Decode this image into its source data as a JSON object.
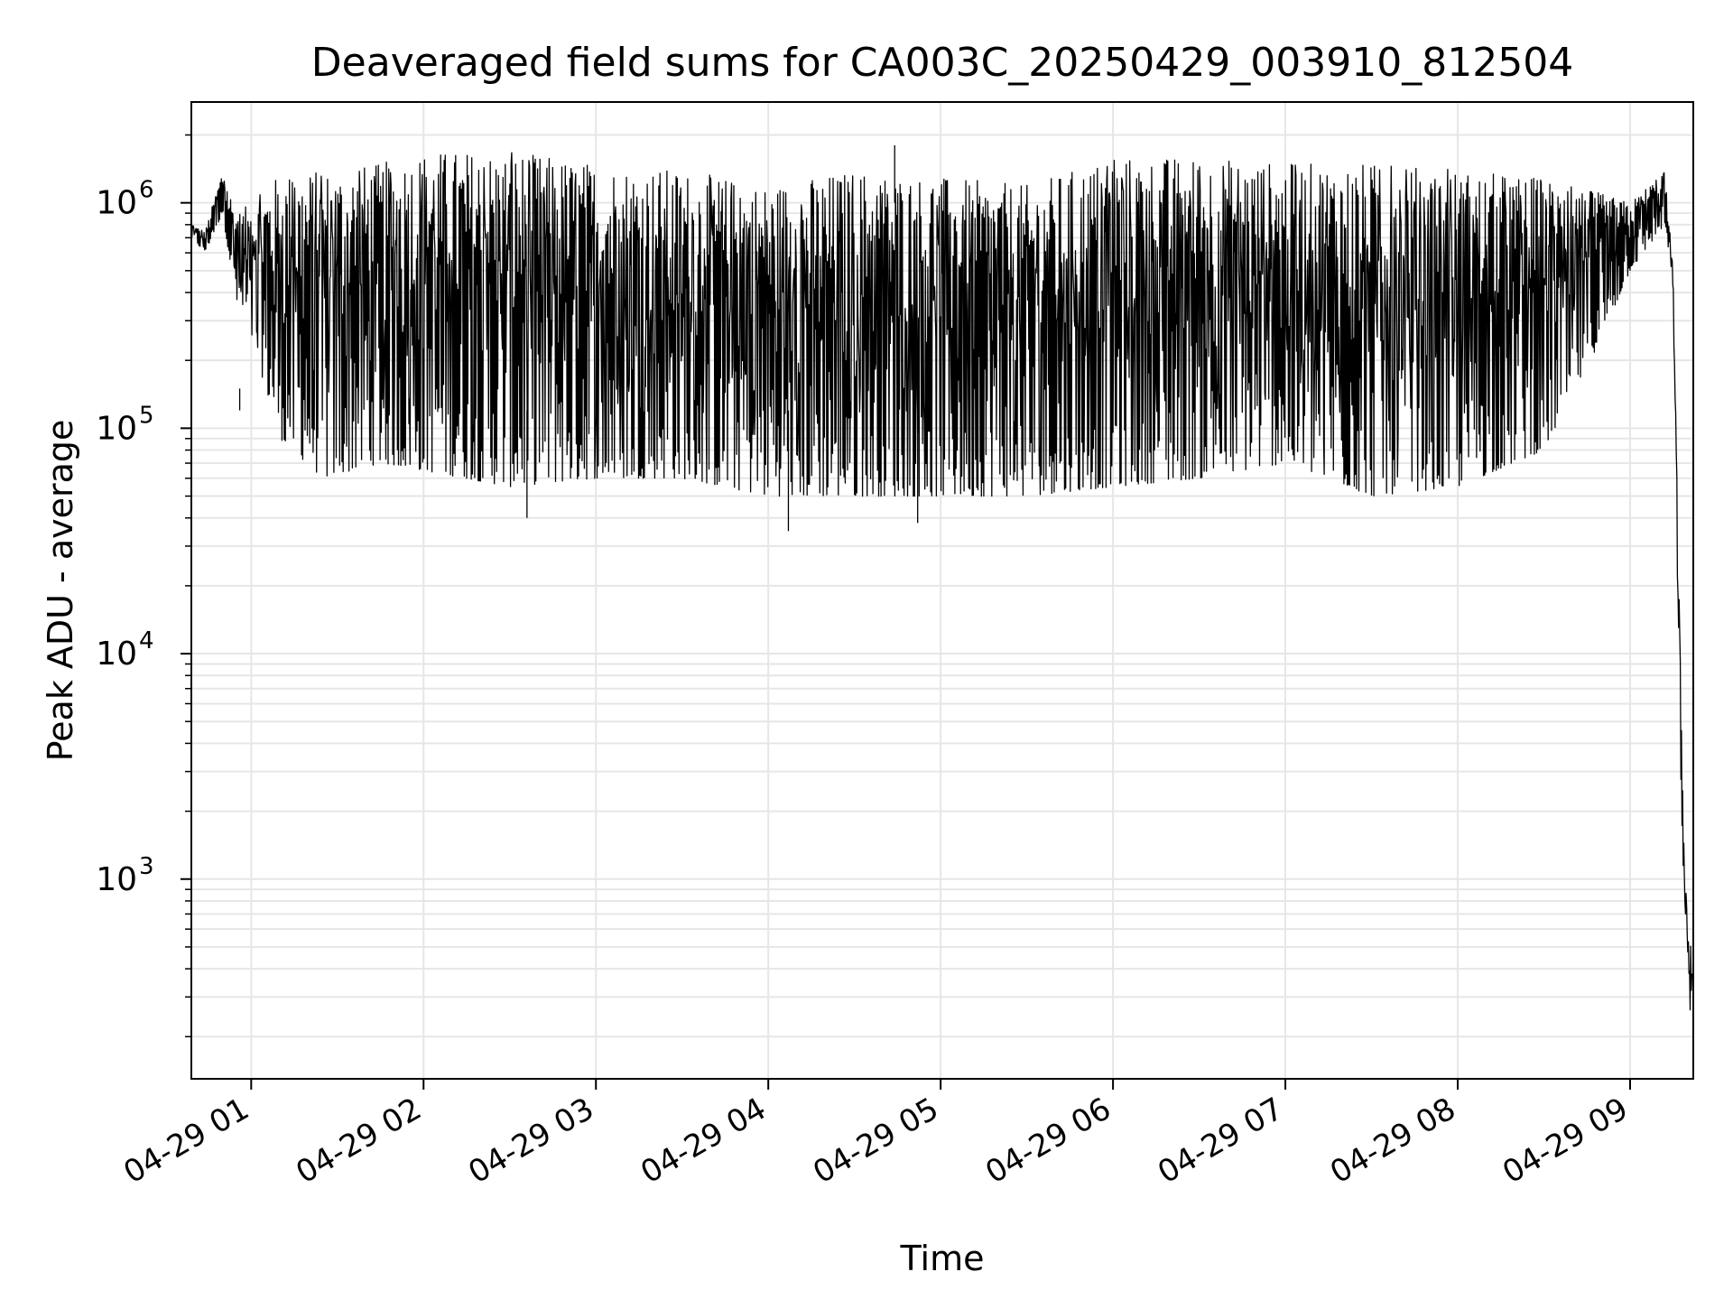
{
  "chart_data": {
    "type": "line",
    "title": "Deaveraged field sums for CA003C_20250429_003910_812504",
    "xlabel": "Time",
    "ylabel": "Peak ADU - average",
    "yscale": "log",
    "grid": true,
    "legend": "none",
    "xlim": [
      "2025-04-29T00:39:10",
      "2025-04-29T09:22:00"
    ],
    "ylim": [
      130,
      2800000
    ],
    "x_ticks": [
      {
        "time": "2025-04-29T01:00:00",
        "label": "04-29 01"
      },
      {
        "time": "2025-04-29T02:00:00",
        "label": "04-29 02"
      },
      {
        "time": "2025-04-29T03:00:00",
        "label": "04-29 03"
      },
      {
        "time": "2025-04-29T04:00:00",
        "label": "04-29 04"
      },
      {
        "time": "2025-04-29T05:00:00",
        "label": "04-29 05"
      },
      {
        "time": "2025-04-29T06:00:00",
        "label": "04-29 06"
      },
      {
        "time": "2025-04-29T07:00:00",
        "label": "04-29 07"
      },
      {
        "time": "2025-04-29T08:00:00",
        "label": "04-29 08"
      },
      {
        "time": "2025-04-29T09:00:00",
        "label": "04-29 09"
      }
    ],
    "y_ticks": [
      {
        "value": 1000,
        "base": "10",
        "exp": "3"
      },
      {
        "value": 10000,
        "base": "10",
        "exp": "4"
      },
      {
        "value": 100000,
        "base": "10",
        "exp": "5"
      },
      {
        "value": 1000000,
        "base": "10",
        "exp": "6"
      }
    ],
    "series": [
      {
        "color": "#000000",
        "envelope": [
          {
            "x": "2025-04-29T00:39:10",
            "max": 800000,
            "min": 700000
          },
          {
            "x": "2025-04-29T00:44:00",
            "max": 750000,
            "min": 600000
          },
          {
            "x": "2025-04-29T00:50:00",
            "max": 1400000,
            "min": 900000
          },
          {
            "x": "2025-04-29T00:55:00",
            "max": 900000,
            "min": 350000
          },
          {
            "x": "2025-04-29T01:00:00",
            "max": 1000000,
            "min": 250000
          },
          {
            "x": "2025-04-29T01:10:00",
            "max": 1350000,
            "min": 90000
          },
          {
            "x": "2025-04-29T01:25:00",
            "max": 1400000,
            "min": 60000
          },
          {
            "x": "2025-04-29T01:45:00",
            "max": 1500000,
            "min": 70000
          },
          {
            "x": "2025-04-29T02:00:00",
            "max": 1700000,
            "min": 65000
          },
          {
            "x": "2025-04-29T02:30:00",
            "max": 1700000,
            "min": 55000
          },
          {
            "x": "2025-04-29T03:00:00",
            "max": 1500000,
            "min": 60000
          },
          {
            "x": "2025-04-29T03:30:00",
            "max": 1400000,
            "min": 60000
          },
          {
            "x": "2025-04-29T04:00:00",
            "max": 1200000,
            "min": 50000
          },
          {
            "x": "2025-04-29T04:30:00",
            "max": 1400000,
            "min": 50000
          },
          {
            "x": "2025-04-29T05:00:00",
            "max": 1300000,
            "min": 50000
          },
          {
            "x": "2025-04-29T05:30:00",
            "max": 1200000,
            "min": 50000
          },
          {
            "x": "2025-04-29T06:00:00",
            "max": 1600000,
            "min": 55000
          },
          {
            "x": "2025-04-29T06:30:00",
            "max": 1600000,
            "min": 60000
          },
          {
            "x": "2025-04-29T07:00:00",
            "max": 1500000,
            "min": 70000
          },
          {
            "x": "2025-04-29T07:30:00",
            "max": 1500000,
            "min": 50000
          },
          {
            "x": "2025-04-29T08:00:00",
            "max": 1400000,
            "min": 55000
          },
          {
            "x": "2025-04-29T08:30:00",
            "max": 1300000,
            "min": 80000
          },
          {
            "x": "2025-04-29T08:50:00",
            "max": 1100000,
            "min": 250000
          },
          {
            "x": "2025-04-29T09:00:00",
            "max": 1000000,
            "min": 500000
          },
          {
            "x": "2025-04-29T09:12:00",
            "max": 1400000,
            "min": 800000
          },
          {
            "x": "2025-04-29T09:15:00",
            "max": 500000,
            "min": 400000
          },
          {
            "x": "2025-04-29T09:17:00",
            "max": 20000,
            "min": 6000
          },
          {
            "x": "2025-04-29T09:19:00",
            "max": 1000,
            "min": 600
          },
          {
            "x": "2025-04-29T09:21:30",
            "max": 500,
            "min": 200
          }
        ],
        "spikes": [
          {
            "x": "2025-04-29T02:36:00",
            "y": 40000
          },
          {
            "x": "2025-04-29T04:07:00",
            "y": 35000
          },
          {
            "x": "2025-04-29T04:52:00",
            "y": 38000
          },
          {
            "x": "2025-04-29T04:44:00",
            "y": 1800000
          },
          {
            "x": "2025-04-29T00:56:00",
            "y": 150000
          }
        ]
      }
    ]
  }
}
